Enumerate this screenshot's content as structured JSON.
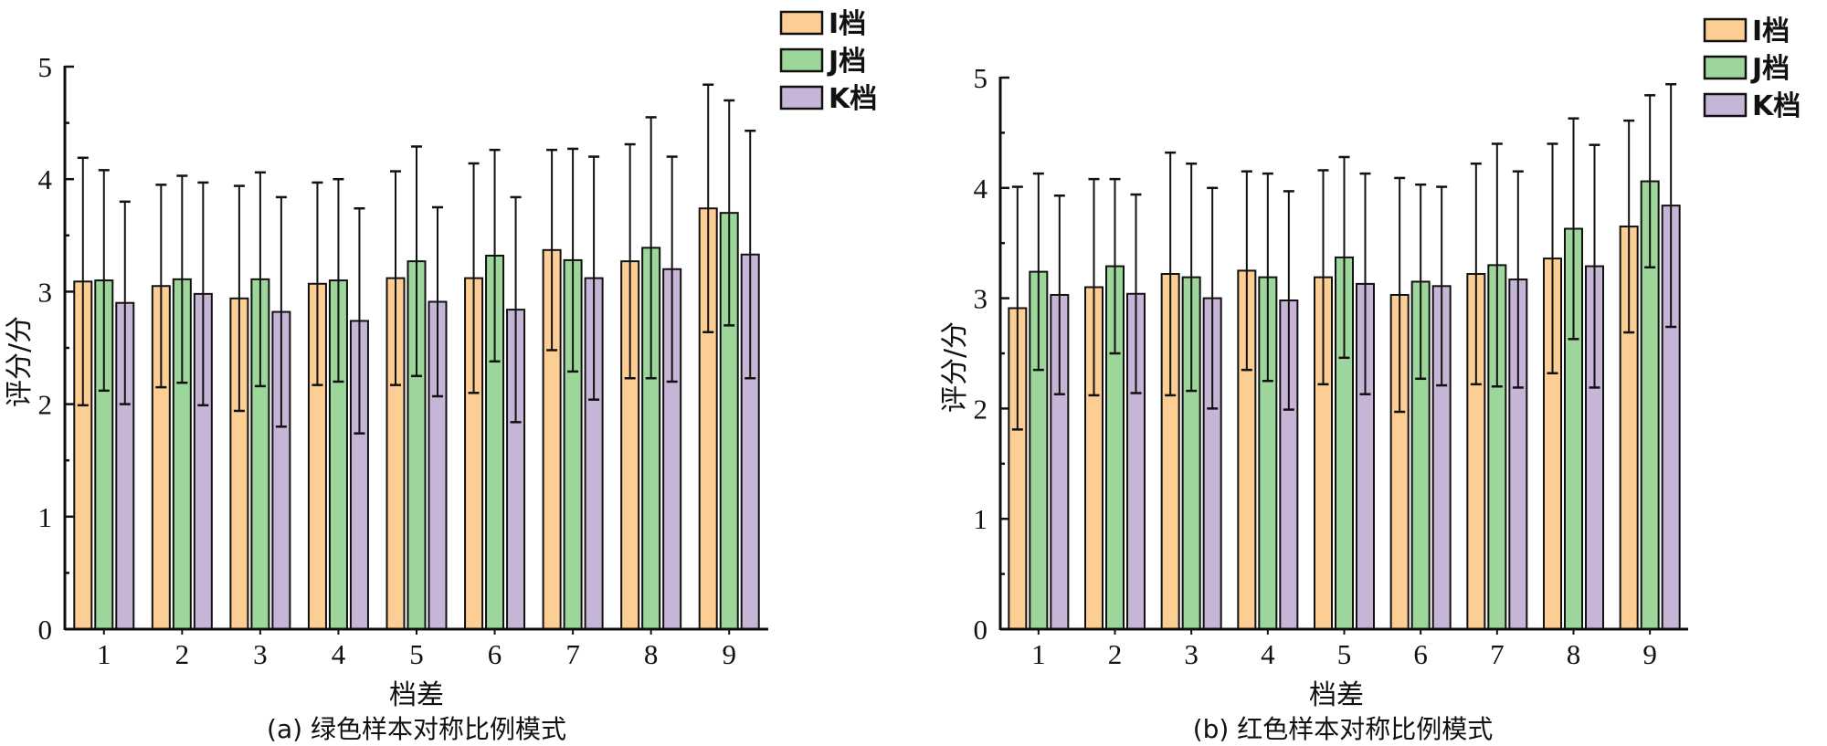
{
  "chart_data": [
    {
      "type": "bar",
      "title": "(a)  绿色样本对称比例模式",
      "xlabel": "档差",
      "ylabel": "评分/分",
      "ylim": [
        0,
        5
      ],
      "yticks": [
        "0",
        "1",
        "2",
        "3",
        "4",
        "5"
      ],
      "categories": [
        "1",
        "2",
        "3",
        "4",
        "5",
        "6",
        "7",
        "8",
        "9"
      ],
      "legend_position": "top-right",
      "series": [
        {
          "name": "I档",
          "color": "#FDCE93",
          "values": [
            3.09,
            3.05,
            2.94,
            3.07,
            3.12,
            3.12,
            3.37,
            3.27,
            3.74
          ],
          "error": [
            1.1,
            0.9,
            1.0,
            0.9,
            0.95,
            1.02,
            0.89,
            1.04,
            1.1
          ]
        },
        {
          "name": "J档",
          "color": "#9DD69A",
          "values": [
            3.1,
            3.11,
            3.11,
            3.1,
            3.27,
            3.32,
            3.28,
            3.39,
            3.7
          ],
          "error": [
            0.98,
            0.92,
            0.95,
            0.9,
            1.02,
            0.94,
            0.99,
            1.16,
            1.0
          ]
        },
        {
          "name": "K档",
          "color": "#C7B5D8",
          "values": [
            2.9,
            2.98,
            2.82,
            2.74,
            2.91,
            2.84,
            3.12,
            3.2,
            3.33
          ],
          "error": [
            0.9,
            0.99,
            1.02,
            1.0,
            0.84,
            1.0,
            1.08,
            1.0,
            1.1
          ]
        }
      ]
    },
    {
      "type": "bar",
      "title": "(b)  红色样本对称比例模式",
      "xlabel": "档差",
      "ylabel": "评分/分",
      "ylim": [
        0,
        5
      ],
      "yticks": [
        "0",
        "1",
        "2",
        "3",
        "4",
        "5"
      ],
      "categories": [
        "1",
        "2",
        "3",
        "4",
        "5",
        "6",
        "7",
        "8",
        "9"
      ],
      "legend_position": "top-right",
      "series": [
        {
          "name": "I档",
          "color": "#FDCE93",
          "values": [
            2.91,
            3.1,
            3.22,
            3.25,
            3.19,
            3.03,
            3.22,
            3.36,
            3.65
          ],
          "error": [
            1.1,
            0.98,
            1.1,
            0.9,
            0.97,
            1.06,
            1.0,
            1.04,
            0.96
          ]
        },
        {
          "name": "J档",
          "color": "#9DD69A",
          "values": [
            3.24,
            3.29,
            3.19,
            3.19,
            3.37,
            3.15,
            3.3,
            3.63,
            4.06
          ],
          "error": [
            0.89,
            0.79,
            1.03,
            0.94,
            0.91,
            0.88,
            1.1,
            1.0,
            0.78
          ]
        },
        {
          "name": "K档",
          "color": "#C7B5D8",
          "values": [
            3.03,
            3.04,
            3.0,
            2.98,
            3.13,
            3.11,
            3.17,
            3.29,
            3.84
          ],
          "error": [
            0.9,
            0.9,
            1.0,
            0.99,
            1.0,
            0.9,
            0.98,
            1.1,
            1.1
          ]
        }
      ]
    }
  ]
}
